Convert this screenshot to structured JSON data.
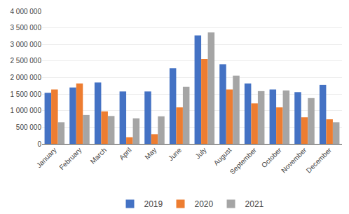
{
  "chart_data": {
    "type": "bar",
    "categories": [
      "January",
      "February",
      "March",
      "April",
      "May",
      "June",
      "July",
      "August",
      "September",
      "October",
      "November",
      "December"
    ],
    "series": [
      {
        "name": "2019",
        "color": "#4472c4",
        "values": [
          1540000,
          1700000,
          1850000,
          1580000,
          1580000,
          2280000,
          3270000,
          2400000,
          1820000,
          1640000,
          1560000,
          1780000
        ]
      },
      {
        "name": "2020",
        "color": "#ed7d31",
        "values": [
          1640000,
          1820000,
          980000,
          200000,
          290000,
          1100000,
          2560000,
          1640000,
          1220000,
          1100000,
          800000,
          740000
        ]
      },
      {
        "name": "2021",
        "color": "#a5a5a5",
        "values": [
          650000,
          870000,
          840000,
          770000,
          830000,
          1720000,
          3360000,
          2060000,
          1590000,
          1610000,
          1380000,
          650000
        ]
      }
    ],
    "ylim": [
      0,
      4000000
    ],
    "yticks": [
      0,
      {
        "value": 500000,
        "label": "500 000"
      },
      {
        "value": 1000000,
        "label": "1 000 000"
      },
      {
        "value": 1500000,
        "label": "1 500 000"
      },
      {
        "value": 2000000,
        "label": "2 000 000"
      },
      {
        "value": 2500000,
        "label": "2 500 000"
      },
      {
        "value": 3000000,
        "label": "3 000 000"
      },
      {
        "value": 3500000,
        "label": "3 500 000"
      },
      {
        "value": 4000000,
        "label": "4 000 000"
      }
    ],
    "grid": true,
    "legend": "bottom"
  }
}
